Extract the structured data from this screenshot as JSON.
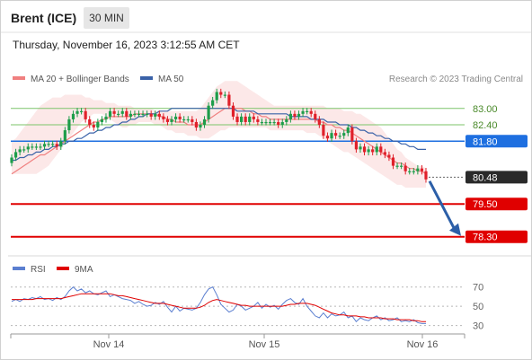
{
  "header": {
    "instrument": "Brent (ICE)",
    "timeframe": "30 MIN",
    "timestamp": "Thursday, November 16, 2023 3:12:55 AM CET"
  },
  "legend": {
    "ma20_bb": "MA 20 + Bollinger Bands",
    "ma50": "MA 50",
    "credit": "Research © 2023 Trading Central"
  },
  "rsi_legend": {
    "rsi": "RSI",
    "ma9": "9MA"
  },
  "colors": {
    "up": "#1e9d4a",
    "down": "#e0202a",
    "ma20_bb": "#f08080",
    "ma50": "#3a62a8",
    "resistance": "#7cc36a",
    "pivot": "#1e6fe0",
    "support": "#e00000",
    "arrow": "#2c5fa8"
  },
  "chart_data": [
    {
      "type": "candlestick",
      "title": "Brent (ICE)",
      "ylim": [
        77.6,
        84.8
      ],
      "x_ticks": [
        "Nov 14",
        "Nov 15",
        "Nov 16"
      ],
      "levels": [
        {
          "value": 83.0,
          "label": "83.00",
          "kind": "resistance"
        },
        {
          "value": 82.4,
          "label": "82.40",
          "kind": "resistance"
        },
        {
          "value": 81.8,
          "label": "81.80",
          "kind": "pivot"
        },
        {
          "value": 80.48,
          "label": "80.48",
          "kind": "last"
        },
        {
          "value": 79.5,
          "label": "79.50",
          "kind": "support"
        },
        {
          "value": 78.3,
          "label": "78.30",
          "kind": "support"
        }
      ],
      "close": [
        81.2,
        81.4,
        81.5,
        81.5,
        81.6,
        81.6,
        81.6,
        81.6,
        81.7,
        81.7,
        81.7,
        81.6,
        81.8,
        82.2,
        82.6,
        82.8,
        82.9,
        82.9,
        82.6,
        82.4,
        82.3,
        82.5,
        82.6,
        82.7,
        82.9,
        82.8,
        82.8,
        82.9,
        82.7,
        82.8,
        82.8,
        82.8,
        82.8,
        82.8,
        82.7,
        82.8,
        82.7,
        82.6,
        82.5,
        82.6,
        82.7,
        82.6,
        82.6,
        82.6,
        82.5,
        82.3,
        82.4,
        82.6,
        83.1,
        83.3,
        83.6,
        83.5,
        83.5,
        83.1,
        82.7,
        82.5,
        82.7,
        82.5,
        82.7,
        82.6,
        82.5,
        82.5,
        82.5,
        82.5,
        82.5,
        82.4,
        82.5,
        82.6,
        82.8,
        82.7,
        82.8,
        82.9,
        82.9,
        82.8,
        82.6,
        82.4,
        82.0,
        81.9,
        82.1,
        82.0,
        82.0,
        82.1,
        82.3,
        81.8,
        81.5,
        81.6,
        81.4,
        81.5,
        81.4,
        81.6,
        81.4,
        81.3,
        81.2,
        80.9,
        80.9,
        80.9,
        80.7,
        80.7,
        80.7,
        80.8,
        80.7,
        80.4
      ],
      "ma20": [
        80.6,
        80.7,
        80.8,
        80.9,
        81.0,
        81.1,
        81.2,
        81.3,
        81.3,
        81.4,
        81.5,
        81.6,
        81.7,
        81.8,
        81.9,
        82.0,
        82.1,
        82.2,
        82.3,
        82.4,
        82.5,
        82.5,
        82.6,
        82.6,
        82.7,
        82.7,
        82.7,
        82.7,
        82.7,
        82.7,
        82.8,
        82.8,
        82.8,
        82.8,
        82.8,
        82.8,
        82.7,
        82.7,
        82.6,
        82.6,
        82.5,
        82.5,
        82.5,
        82.4,
        82.4,
        82.4,
        82.4,
        82.5,
        82.6,
        82.7,
        82.8,
        82.9,
        83.0,
        83.0,
        83.0,
        83.0,
        83.0,
        82.9,
        82.9,
        82.8,
        82.8,
        82.7,
        82.7,
        82.6,
        82.6,
        82.6,
        82.6,
        82.6,
        82.6,
        82.6,
        82.6,
        82.6,
        82.6,
        82.6,
        82.6,
        82.5,
        82.5,
        82.4,
        82.4,
        82.3,
        82.3,
        82.2,
        82.2,
        82.1,
        82.0,
        81.9,
        81.8,
        81.7,
        81.6,
        81.5,
        81.4,
        81.3,
        81.2,
        81.1,
        81.0,
        81.0,
        80.9,
        80.8,
        80.8,
        80.7,
        80.7,
        80.6
      ],
      "bb_upper": [
        81.8,
        81.9,
        82.1,
        82.3,
        82.5,
        82.7,
        82.9,
        83.1,
        83.2,
        83.3,
        83.4,
        83.4,
        83.4,
        83.5,
        83.5,
        83.5,
        83.5,
        83.5,
        83.4,
        83.4,
        83.3,
        83.3,
        83.3,
        83.2,
        83.2,
        83.2,
        83.1,
        83.1,
        83.1,
        83.1,
        83.0,
        83.0,
        83.0,
        83.0,
        83.0,
        82.9,
        82.9,
        82.9,
        82.9,
        82.9,
        82.9,
        82.9,
        82.9,
        82.9,
        82.9,
        82.9,
        83.0,
        83.2,
        83.4,
        83.6,
        83.8,
        83.9,
        84.0,
        84.0,
        84.0,
        84.0,
        83.9,
        83.8,
        83.7,
        83.6,
        83.5,
        83.4,
        83.3,
        83.2,
        83.1,
        83.1,
        83.1,
        83.1,
        83.1,
        83.1,
        83.1,
        83.1,
        83.1,
        83.1,
        83.1,
        83.1,
        83.1,
        83.0,
        83.0,
        83.0,
        83.0,
        82.9,
        82.9,
        82.9,
        82.8,
        82.8,
        82.7,
        82.6,
        82.5,
        82.4,
        82.3,
        82.1,
        81.9,
        81.7,
        81.5,
        81.4,
        81.2,
        81.1,
        81.0,
        80.9,
        80.9,
        80.8
      ],
      "bb_lower": [
        80.6,
        80.6,
        80.6,
        80.6,
        80.6,
        80.6,
        80.6,
        80.7,
        80.8,
        80.9,
        81.1,
        81.3,
        81.5,
        81.7,
        81.9,
        82.1,
        82.3,
        82.5,
        82.6,
        82.7,
        82.8,
        82.8,
        82.8,
        82.7,
        82.6,
        82.5,
        82.4,
        82.3,
        82.3,
        82.4,
        82.4,
        82.5,
        82.5,
        82.5,
        82.5,
        82.4,
        82.4,
        82.3,
        82.2,
        82.2,
        82.1,
        82.1,
        82.1,
        82.0,
        82.0,
        82.0,
        81.9,
        81.9,
        81.9,
        82.0,
        82.1,
        82.2,
        82.2,
        82.3,
        82.3,
        82.3,
        82.3,
        82.3,
        82.3,
        82.3,
        82.3,
        82.3,
        82.3,
        82.2,
        82.2,
        82.2,
        82.2,
        82.2,
        82.2,
        82.2,
        82.2,
        82.2,
        82.1,
        82.1,
        82.1,
        82.0,
        81.9,
        81.8,
        81.7,
        81.6,
        81.5,
        81.4,
        81.4,
        81.3,
        81.2,
        81.1,
        81.0,
        80.9,
        80.8,
        80.7,
        80.6,
        80.5,
        80.4,
        80.3,
        80.2,
        80.2,
        80.1,
        80.1,
        80.1,
        80.1,
        80.1,
        80.1
      ],
      "ma50": [
        81.1,
        81.1,
        81.2,
        81.2,
        81.3,
        81.3,
        81.4,
        81.4,
        81.5,
        81.5,
        81.6,
        81.6,
        81.7,
        81.7,
        81.8,
        81.8,
        81.9,
        81.9,
        82.0,
        82.1,
        82.1,
        82.2,
        82.2,
        82.3,
        82.3,
        82.4,
        82.4,
        82.5,
        82.5,
        82.6,
        82.6,
        82.7,
        82.7,
        82.8,
        82.8,
        82.8,
        82.9,
        82.9,
        82.9,
        83.0,
        83.0,
        83.0,
        83.0,
        83.0,
        83.0,
        83.0,
        83.0,
        83.0,
        83.0,
        83.0,
        83.0,
        83.0,
        83.0,
        83.0,
        83.0,
        82.9,
        82.9,
        82.9,
        82.9,
        82.9,
        82.8,
        82.8,
        82.8,
        82.8,
        82.8,
        82.8,
        82.8,
        82.8,
        82.7,
        82.7,
        82.7,
        82.7,
        82.7,
        82.6,
        82.6,
        82.6,
        82.6,
        82.5,
        82.5,
        82.5,
        82.4,
        82.4,
        82.4,
        82.3,
        82.3,
        82.2,
        82.2,
        82.1,
        82.1,
        82.0,
        82.0,
        81.9,
        81.9,
        81.8,
        81.8,
        81.7,
        81.7,
        81.6,
        81.6,
        81.5,
        81.5,
        81.5
      ]
    },
    {
      "type": "line",
      "title": "RSI",
      "ylim": [
        24,
        80
      ],
      "ticks": [
        70,
        50,
        30
      ],
      "series": [
        {
          "name": "RSI",
          "values": [
            55,
            57,
            55,
            58,
            57,
            59,
            58,
            60,
            57,
            58,
            56,
            59,
            57,
            60,
            66,
            70,
            66,
            68,
            64,
            66,
            63,
            62,
            64,
            66,
            60,
            62,
            60,
            58,
            57,
            56,
            53,
            55,
            52,
            50,
            51,
            54,
            52,
            55,
            49,
            44,
            50,
            45,
            48,
            47,
            46,
            48,
            54,
            62,
            68,
            70,
            62,
            52,
            48,
            44,
            46,
            52,
            50,
            46,
            48,
            50,
            54,
            48,
            52,
            49,
            51,
            47,
            52,
            56,
            58,
            54,
            52,
            58,
            50,
            45,
            40,
            38,
            43,
            38,
            42,
            40,
            41,
            44,
            38,
            40,
            34,
            38,
            36,
            35,
            38,
            40,
            36,
            38,
            35,
            36,
            38,
            34,
            35,
            34,
            36,
            33,
            32,
            32
          ]
        },
        {
          "name": "9MA",
          "values": [
            57,
            57,
            57,
            57,
            57,
            57,
            58,
            58,
            58,
            58,
            58,
            58,
            58,
            59,
            60,
            61,
            62,
            63,
            63,
            63,
            63,
            63,
            63,
            63,
            63,
            62,
            61,
            61,
            60,
            59,
            58,
            57,
            56,
            55,
            54,
            53,
            53,
            53,
            52,
            51,
            50,
            49,
            48,
            48,
            48,
            48,
            49,
            51,
            54,
            56,
            57,
            56,
            55,
            54,
            53,
            52,
            51,
            51,
            50,
            50,
            50,
            50,
            50,
            50,
            50,
            50,
            50,
            51,
            52,
            52,
            53,
            53,
            53,
            52,
            51,
            49,
            47,
            45,
            43,
            42,
            41,
            41,
            40,
            40,
            40,
            39,
            39,
            38,
            38,
            38,
            38,
            37,
            37,
            37,
            36,
            36,
            36,
            36,
            35,
            35,
            34,
            34
          ]
        }
      ]
    }
  ]
}
